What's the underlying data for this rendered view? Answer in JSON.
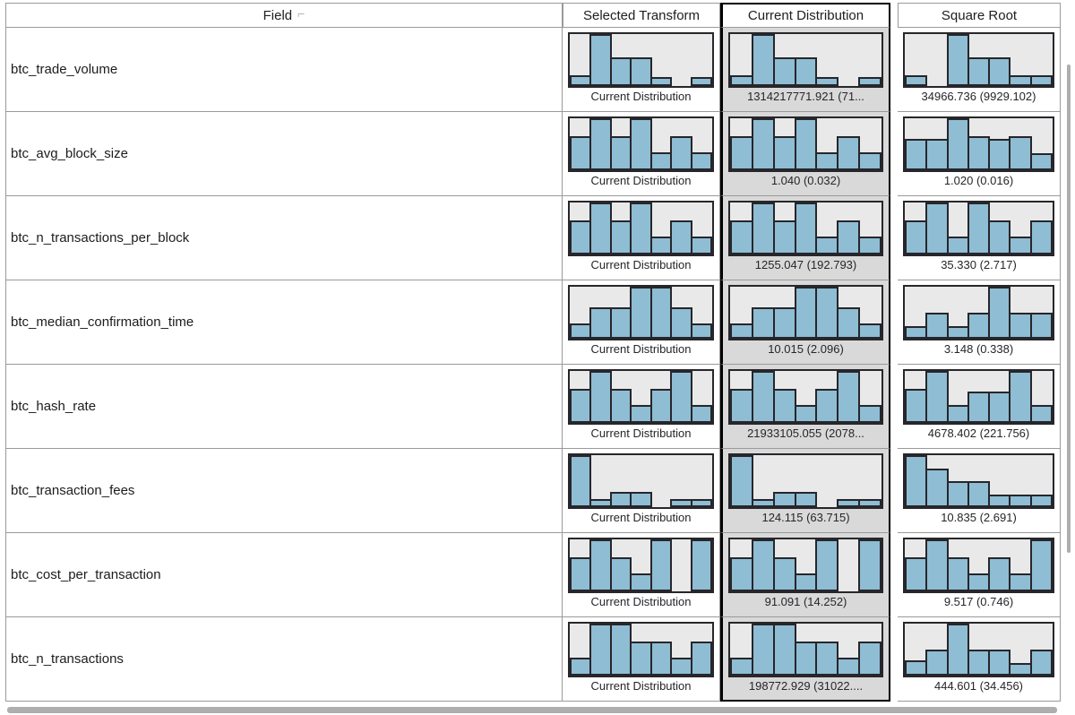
{
  "colors": {
    "bar_fill": "#8fbdd3",
    "bar_border": "#26262b",
    "hist_bg": "#e9e9e9",
    "selected_column_bg": "#d9d9d9",
    "selected_column_border": "#000000",
    "grid_border": "#9a9a9a",
    "label_text": "#26262b",
    "scrollbar": "#aeaeae"
  },
  "header": {
    "field": "Field",
    "sort_icon": "⌐",
    "selected_transform": "Selected Transform",
    "current_distribution": "Current Distribution",
    "square_root": "Square Root"
  },
  "rows": [
    {
      "field": "btc_trade_volume",
      "selected_label": "Current Distribution",
      "current_bars": [
        0.2,
        1.0,
        0.55,
        0.55,
        0.18,
        0,
        0.18
      ],
      "current_label": "1314217771.921 (71...",
      "sqrt_bars": [
        0.2,
        0,
        1.0,
        0.55,
        0.55,
        0.2,
        0.2
      ],
      "sqrt_label": "34966.736 (9929.102)"
    },
    {
      "field": "btc_avg_block_size",
      "selected_label": "Current Distribution",
      "current_bars": [
        0.65,
        1.0,
        0.65,
        1.0,
        0.35,
        0.65,
        0.35
      ],
      "current_label": "1.040 (0.032)",
      "sqrt_bars": [
        0.6,
        0.6,
        1.0,
        0.65,
        0.6,
        0.65,
        0.33
      ],
      "sqrt_label": "1.020 (0.016)"
    },
    {
      "field": "btc_n_transactions_per_block",
      "selected_label": "Current Distribution",
      "current_bars": [
        0.65,
        1.0,
        0.65,
        1.0,
        0.35,
        0.65,
        0.35
      ],
      "current_label": "1255.047 (192.793)",
      "sqrt_bars": [
        0.65,
        1.0,
        0.35,
        1.0,
        0.65,
        0.35,
        0.65
      ],
      "sqrt_label": "35.330 (2.717)"
    },
    {
      "field": "btc_median_confirmation_time",
      "selected_label": "Current Distribution",
      "current_bars": [
        0.3,
        0.6,
        0.6,
        1.0,
        1.0,
        0.6,
        0.3
      ],
      "current_label": "10.015 (2.096)",
      "sqrt_bars": [
        0.25,
        0.5,
        0.25,
        0.5,
        1.0,
        0.5,
        0.5
      ],
      "sqrt_label": "3.148 (0.338)"
    },
    {
      "field": "btc_hash_rate",
      "selected_label": "Current Distribution",
      "current_bars": [
        0.65,
        1.0,
        0.65,
        0.35,
        0.65,
        1.0,
        0.35
      ],
      "current_label": "21933105.055 (2078...",
      "sqrt_bars": [
        0.65,
        1.0,
        0.35,
        0.6,
        0.6,
        1.0,
        0.35
      ],
      "sqrt_label": "4678.402 (221.756)"
    },
    {
      "field": "btc_transaction_fees",
      "selected_label": "Current Distribution",
      "current_bars": [
        1.0,
        0.15,
        0.3,
        0.3,
        0,
        0.15,
        0.15
      ],
      "current_label": "124.115 (63.715)",
      "sqrt_bars": [
        1.0,
        0.75,
        0.5,
        0.5,
        0.25,
        0.25,
        0.25
      ],
      "sqrt_label": "10.835 (2.691)"
    },
    {
      "field": "btc_cost_per_transaction",
      "selected_label": "Current Distribution",
      "current_bars": [
        0.65,
        1.0,
        0.65,
        0.35,
        1.0,
        0,
        1.0
      ],
      "current_label": "91.091 (14.252)",
      "sqrt_bars": [
        0.65,
        1.0,
        0.65,
        0.35,
        0.65,
        0.35,
        1.0
      ],
      "sqrt_label": "9.517 (0.746)"
    },
    {
      "field": "btc_n_transactions",
      "selected_label": "Current Distribution",
      "current_bars": [
        0.35,
        1.0,
        1.0,
        0.65,
        0.65,
        0.35,
        0.65
      ],
      "current_label": "198772.929 (31022....",
      "sqrt_bars": [
        0.3,
        0.5,
        1.0,
        0.5,
        0.5,
        0.25,
        0.5
      ],
      "sqrt_label": "444.601 (34.456)"
    }
  ]
}
